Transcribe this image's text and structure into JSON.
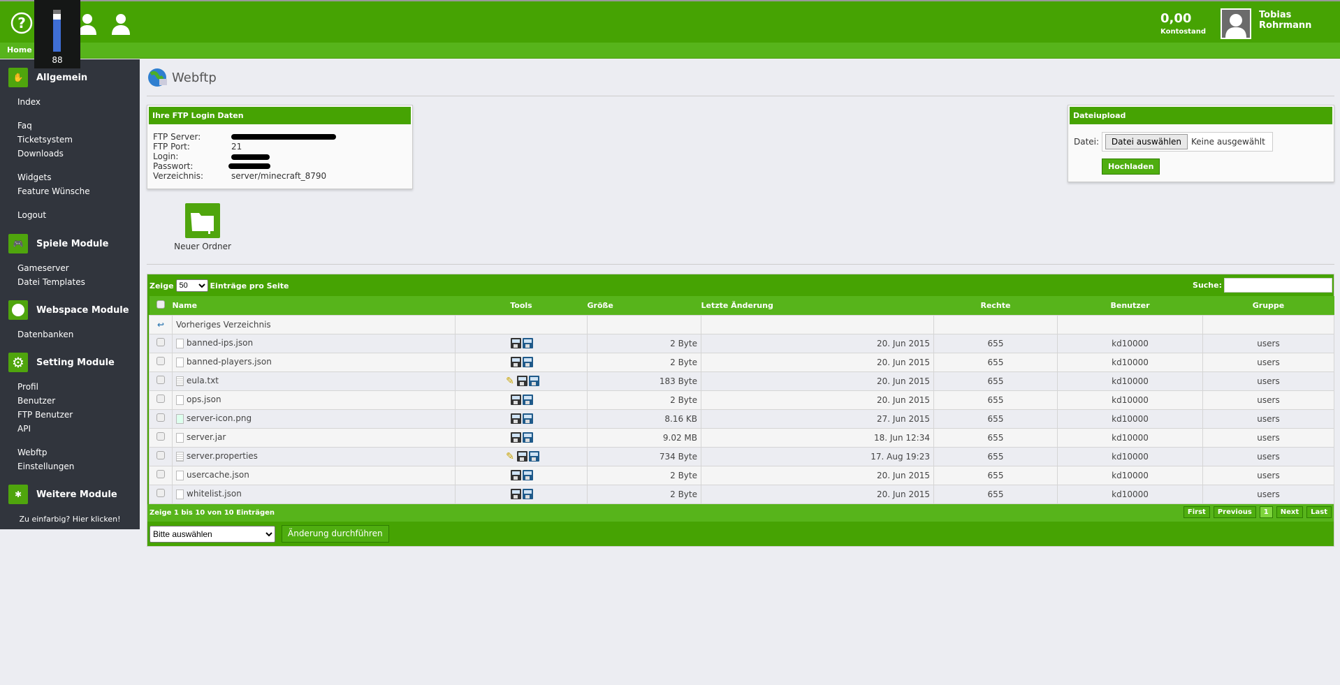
{
  "header": {
    "nav_home": "Home",
    "balance_value": "0,00",
    "balance_label": "Kontostand",
    "user_name": "Tobias Rohrmann",
    "icons": [
      "help-icon",
      "hat-icon",
      "support-agent-icon",
      "user-icon"
    ],
    "accent": "#46a303"
  },
  "overlay": {
    "value": "88",
    "level": 88
  },
  "sidebar": {
    "sections": [
      {
        "title": "Allgemein",
        "items": [
          "Index",
          "Faq",
          "Ticketsystem",
          "Downloads",
          "Widgets",
          "Feature Wünsche",
          "Logout"
        ]
      },
      {
        "title": "Spiele Module",
        "items": [
          "Gameserver",
          "Datei Templates"
        ]
      },
      {
        "title": "Webspace Module",
        "items": [
          "Datenbanken"
        ]
      },
      {
        "title": "Setting Module",
        "items": [
          "Profil",
          "Benutzer",
          "FTP Benutzer",
          "API",
          "Webftp",
          "Einstellungen"
        ]
      },
      {
        "title": "Weitere Module",
        "items": []
      }
    ],
    "hint": "Zu einfarbig? Hier klicken!"
  },
  "page": {
    "title": "Webftp"
  },
  "ftp": {
    "title": "Ihre FTP Login Daten",
    "server_label": "FTP Server:",
    "port_label": "FTP Port:",
    "port": "21",
    "login_label": "Login:",
    "password_label": "Passwort:",
    "dir_label": "Verzeichnis:",
    "dir": "server/minecraft_8790"
  },
  "upload": {
    "title": "Dateiupload",
    "label": "Datei:",
    "choose": "Datei auswählen",
    "none": "Keine ausgewählt",
    "submit": "Hochladen"
  },
  "new_folder": "Neuer Ordner",
  "table": {
    "show": "Zeige",
    "per_page": "50",
    "per_page_suffix": "Einträge pro Seite",
    "search_label": "Suche:",
    "columns": [
      "Name",
      "Tools",
      "Größe",
      "Letzte Änderung",
      "Rechte",
      "Benutzer",
      "Gruppe"
    ],
    "parent": "Vorheriges Verzeichnis",
    "rows": [
      {
        "name": "banned-ips.json",
        "edit": false,
        "size": "2 Byte",
        "date": "20. Jun 2015",
        "perm": "655",
        "user": "kd10000",
        "group": "users",
        "type": "file"
      },
      {
        "name": "banned-players.json",
        "edit": false,
        "size": "2 Byte",
        "date": "20. Jun 2015",
        "perm": "655",
        "user": "kd10000",
        "group": "users",
        "type": "file"
      },
      {
        "name": "eula.txt",
        "edit": true,
        "size": "183 Byte",
        "date": "20. Jun 2015",
        "perm": "655",
        "user": "kd10000",
        "group": "users",
        "type": "text"
      },
      {
        "name": "ops.json",
        "edit": false,
        "size": "2 Byte",
        "date": "20. Jun 2015",
        "perm": "655",
        "user": "kd10000",
        "group": "users",
        "type": "file"
      },
      {
        "name": "server-icon.png",
        "edit": false,
        "size": "8.16 KB",
        "date": "27. Jun 2015",
        "perm": "655",
        "user": "kd10000",
        "group": "users",
        "type": "image"
      },
      {
        "name": "server.jar",
        "edit": false,
        "size": "9.02 MB",
        "date": "18. Jun 12:34",
        "perm": "655",
        "user": "kd10000",
        "group": "users",
        "type": "file"
      },
      {
        "name": "server.properties",
        "edit": true,
        "size": "734 Byte",
        "date": "17. Aug 19:23",
        "perm": "655",
        "user": "kd10000",
        "group": "users",
        "type": "text"
      },
      {
        "name": "usercache.json",
        "edit": false,
        "size": "2 Byte",
        "date": "20. Jun 2015",
        "perm": "655",
        "user": "kd10000",
        "group": "users",
        "type": "file"
      },
      {
        "name": "whitelist.json",
        "edit": false,
        "size": "2 Byte",
        "date": "20. Jun 2015",
        "perm": "655",
        "user": "kd10000",
        "group": "users",
        "type": "file"
      }
    ],
    "info": "Zeige 1 bis 10 von 10 Einträgen",
    "pager": [
      "First",
      "Previous",
      "1",
      "Next",
      "Last"
    ],
    "bulk_select": "Bitte auswählen",
    "bulk_submit": "Änderung durchführen"
  }
}
